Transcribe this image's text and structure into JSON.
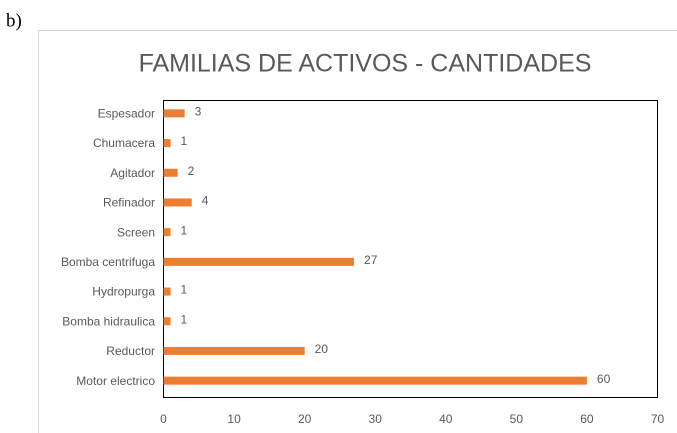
{
  "panel_label": "b)",
  "chart_data": {
    "type": "barh",
    "title": "FAMILIAS DE ACTIVOS - CANTIDADES",
    "categories": [
      "Espesador",
      "Chumacera",
      "Agitador",
      "Refinador",
      "Screen",
      "Bomba centrifuga",
      "Hydropurga",
      "Bomba hidraulica",
      "Reductor",
      "Motor electrico"
    ],
    "values": [
      3,
      1,
      2,
      4,
      1,
      27,
      1,
      1,
      20,
      60
    ],
    "color": "#ed7d31",
    "xlim": [
      0,
      70
    ],
    "xticks": [
      0,
      10,
      20,
      30,
      40,
      50,
      60,
      70
    ]
  }
}
